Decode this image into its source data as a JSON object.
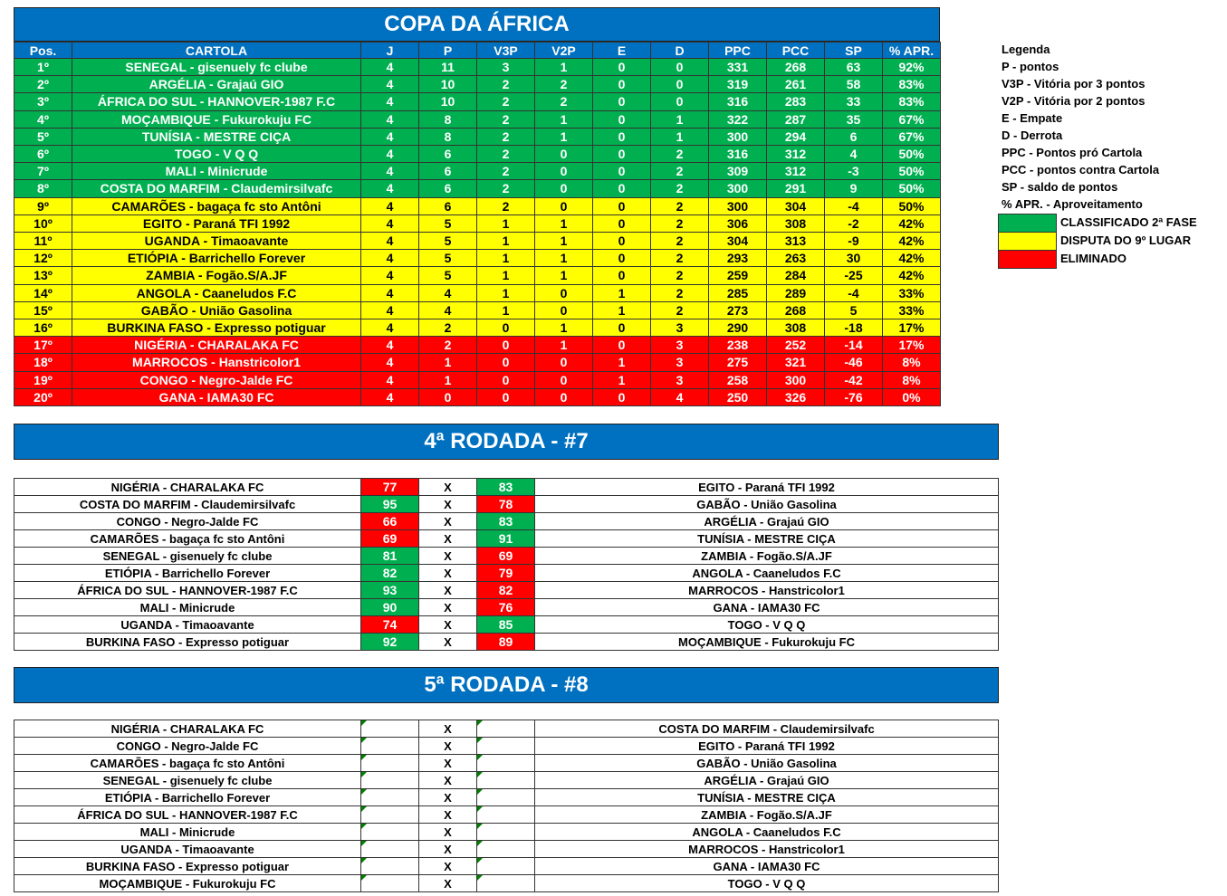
{
  "standings": {
    "title": "COPA DA ÁFRICA",
    "header": [
      "Pos.",
      "CARTOLA",
      "J",
      "P",
      "V3P",
      "V2P",
      "E",
      "D",
      "PPC",
      "PCC",
      "SP",
      "% APR."
    ],
    "rows": [
      [
        "1º",
        "SENEGAL - gisenuely fc clube",
        "4",
        "11",
        "3",
        "1",
        "0",
        "0",
        "331",
        "268",
        "63",
        "92%"
      ],
      [
        "2º",
        "ARGÉLIA - Grajaú GIO",
        "4",
        "10",
        "2",
        "2",
        "0",
        "0",
        "319",
        "261",
        "58",
        "83%"
      ],
      [
        "3º",
        "ÁFRICA DO SUL - HANNOVER-1987 F.C",
        "4",
        "10",
        "2",
        "2",
        "0",
        "0",
        "316",
        "283",
        "33",
        "83%"
      ],
      [
        "4º",
        "MOÇAMBIQUE - Fukurokuju FC",
        "4",
        "8",
        "2",
        "1",
        "0",
        "1",
        "322",
        "287",
        "35",
        "67%"
      ],
      [
        "5º",
        "TUNÍSIA - MESTRE CIÇA",
        "4",
        "8",
        "2",
        "1",
        "0",
        "1",
        "300",
        "294",
        "6",
        "67%"
      ],
      [
        "6º",
        "TOGO - V Q Q",
        "4",
        "6",
        "2",
        "0",
        "0",
        "2",
        "316",
        "312",
        "4",
        "50%"
      ],
      [
        "7º",
        "MALI - Minicrude",
        "4",
        "6",
        "2",
        "0",
        "0",
        "2",
        "309",
        "312",
        "-3",
        "50%"
      ],
      [
        "8º",
        "COSTA DO MARFIM - Claudemirsilvafc",
        "4",
        "6",
        "2",
        "0",
        "0",
        "2",
        "300",
        "291",
        "9",
        "50%"
      ],
      [
        "9º",
        "CAMARÕES - bagaça fc sto Antôni",
        "4",
        "6",
        "2",
        "0",
        "0",
        "2",
        "300",
        "304",
        "-4",
        "50%"
      ],
      [
        "10º",
        "EGITO - Paraná TFI 1992",
        "4",
        "5",
        "1",
        "1",
        "0",
        "2",
        "306",
        "308",
        "-2",
        "42%"
      ],
      [
        "11º",
        "UGANDA - Timaoavante",
        "4",
        "5",
        "1",
        "1",
        "0",
        "2",
        "304",
        "313",
        "-9",
        "42%"
      ],
      [
        "12º",
        "ETIÓPIA - Barrichello Forever",
        "4",
        "5",
        "1",
        "1",
        "0",
        "2",
        "293",
        "263",
        "30",
        "42%"
      ],
      [
        "13º",
        "ZAMBIA - Fogão.S/A.JF",
        "4",
        "5",
        "1",
        "1",
        "0",
        "2",
        "259",
        "284",
        "-25",
        "42%"
      ],
      [
        "14º",
        "ANGOLA - Caaneludos F.C",
        "4",
        "4",
        "1",
        "0",
        "1",
        "2",
        "285",
        "289",
        "-4",
        "33%"
      ],
      [
        "15º",
        "GABÃO - União Gasolina",
        "4",
        "4",
        "1",
        "0",
        "1",
        "2",
        "273",
        "268",
        "5",
        "33%"
      ],
      [
        "16º",
        "BURKINA FASO - Expresso potiguar",
        "4",
        "2",
        "0",
        "1",
        "0",
        "3",
        "290",
        "308",
        "-18",
        "17%"
      ],
      [
        "17º",
        "NIGÉRIA - CHARALAKA FC",
        "4",
        "2",
        "0",
        "1",
        "0",
        "3",
        "238",
        "252",
        "-14",
        "17%"
      ],
      [
        "18º",
        "MARROCOS - Hanstricolor1",
        "4",
        "1",
        "0",
        "0",
        "1",
        "3",
        "275",
        "321",
        "-46",
        "8%"
      ],
      [
        "19º",
        "CONGO - Negro-Jalde FC",
        "4",
        "1",
        "0",
        "0",
        "1",
        "3",
        "258",
        "300",
        "-42",
        "8%"
      ],
      [
        "20º",
        "GANA - IAMA30 FC",
        "4",
        "0",
        "0",
        "0",
        "0",
        "4",
        "250",
        "326",
        "-76",
        "0%"
      ]
    ],
    "row_colors": [
      "#00b050",
      "#00b050",
      "#00b050",
      "#00b050",
      "#00b050",
      "#00b050",
      "#00b050",
      "#00b050",
      "#ffff00",
      "#ffff00",
      "#ffff00",
      "#ffff00",
      "#ffff00",
      "#ffff00",
      "#ffff00",
      "#ffff00",
      "#ff0000",
      "#ff0000",
      "#ff0000",
      "#ff0000"
    ],
    "row_text_colors": [
      "#ffffff",
      "#ffffff",
      "#ffffff",
      "#ffffff",
      "#ffffff",
      "#ffffff",
      "#ffffff",
      "#ffffff",
      "#000000",
      "#000000",
      "#000000",
      "#000000",
      "#000000",
      "#000000",
      "#000000",
      "#000000",
      "#ffffff",
      "#ffffff",
      "#ffffff",
      "#ffffff"
    ]
  },
  "legend": {
    "title": "Legenda",
    "lines": [
      "P - pontos",
      "V3P - Vitória por 3 pontos",
      "V2P - Vitória por 2 pontos",
      "E - Empate",
      "D - Derrota",
      "PPC - Pontos pró Cartola",
      "PCC - pontos contra Cartola",
      "SP - saldo de pontos",
      "% APR. - Aproveitamento"
    ],
    "items": [
      {
        "label": "CLASSIFICADO 2ª FASE",
        "color": "#00b050"
      },
      {
        "label": "DISPUTA DO 9º LUGAR",
        "color": "#ffff00"
      },
      {
        "label": "ELIMINADO",
        "color": "#ff0000"
      }
    ]
  },
  "rounds": [
    {
      "title": "4ª RODADA - #7",
      "separator": "X",
      "matches": [
        {
          "home": "NIGÉRIA - CHARALAKA FC",
          "home_score": 77,
          "away_score": 83,
          "away": "EGITO - Paraná TFI 1992"
        },
        {
          "home": "COSTA DO MARFIM - Claudemirsilvafc",
          "home_score": 95,
          "away_score": 78,
          "away": "GABÃO - União Gasolina"
        },
        {
          "home": "CONGO - Negro-Jalde FC",
          "home_score": 66,
          "away_score": 83,
          "away": "ARGÉLIA - Grajaú GIO"
        },
        {
          "home": "CAMARÕES - bagaça fc sto Antôni",
          "home_score": 69,
          "away_score": 91,
          "away": "TUNÍSIA - MESTRE CIÇA"
        },
        {
          "home": "SENEGAL - gisenuely fc clube",
          "home_score": 81,
          "away_score": 69,
          "away": "ZAMBIA - Fogão.S/A.JF"
        },
        {
          "home": "ETIÓPIA - Barrichello Forever",
          "home_score": 82,
          "away_score": 79,
          "away": "ANGOLA - Caaneludos F.C"
        },
        {
          "home": "ÁFRICA DO SUL - HANNOVER-1987 F.C",
          "home_score": 93,
          "away_score": 82,
          "away": "MARROCOS - Hanstricolor1"
        },
        {
          "home": "MALI - Minicrude",
          "home_score": 90,
          "away_score": 76,
          "away": "GANA - IAMA30 FC"
        },
        {
          "home": "UGANDA - Timaoavante",
          "home_score": 74,
          "away_score": 85,
          "away": "TOGO - V Q Q"
        },
        {
          "home": "BURKINA FASO - Expresso potiguar",
          "home_score": 92,
          "away_score": 89,
          "away": "MOÇAMBIQUE - Fukurokuju FC"
        }
      ]
    },
    {
      "title": "5ª RODADA - #8",
      "separator": "X",
      "matches": [
        {
          "home": "NIGÉRIA - CHARALAKA FC",
          "away": "COSTA DO MARFIM - Claudemirsilvafc"
        },
        {
          "home": "CONGO - Negro-Jalde FC",
          "away": "EGITO - Paraná TFI 1992"
        },
        {
          "home": "CAMARÕES - bagaça fc sto Antôni",
          "away": "GABÃO - União Gasolina"
        },
        {
          "home": "SENEGAL - gisenuely fc clube",
          "away": "ARGÉLIA - Grajaú GIO"
        },
        {
          "home": "ETIÓPIA - Barrichello Forever",
          "away": "TUNÍSIA - MESTRE CIÇA"
        },
        {
          "home": "ÁFRICA DO SUL - HANNOVER-1987 F.C",
          "away": "ZAMBIA - Fogão.S/A.JF"
        },
        {
          "home": "MALI - Minicrude",
          "away": "ANGOLA - Caaneludos F.C"
        },
        {
          "home": "UGANDA - Timaoavante",
          "away": "MARROCOS - Hanstricolor1"
        },
        {
          "home": "BURKINA FASO - Expresso potiguar",
          "away": "GANA - IAMA30 FC"
        },
        {
          "home": "MOÇAMBIQUE - Fukurokuju FC",
          "away": "TOGO - V Q Q"
        }
      ]
    }
  ]
}
